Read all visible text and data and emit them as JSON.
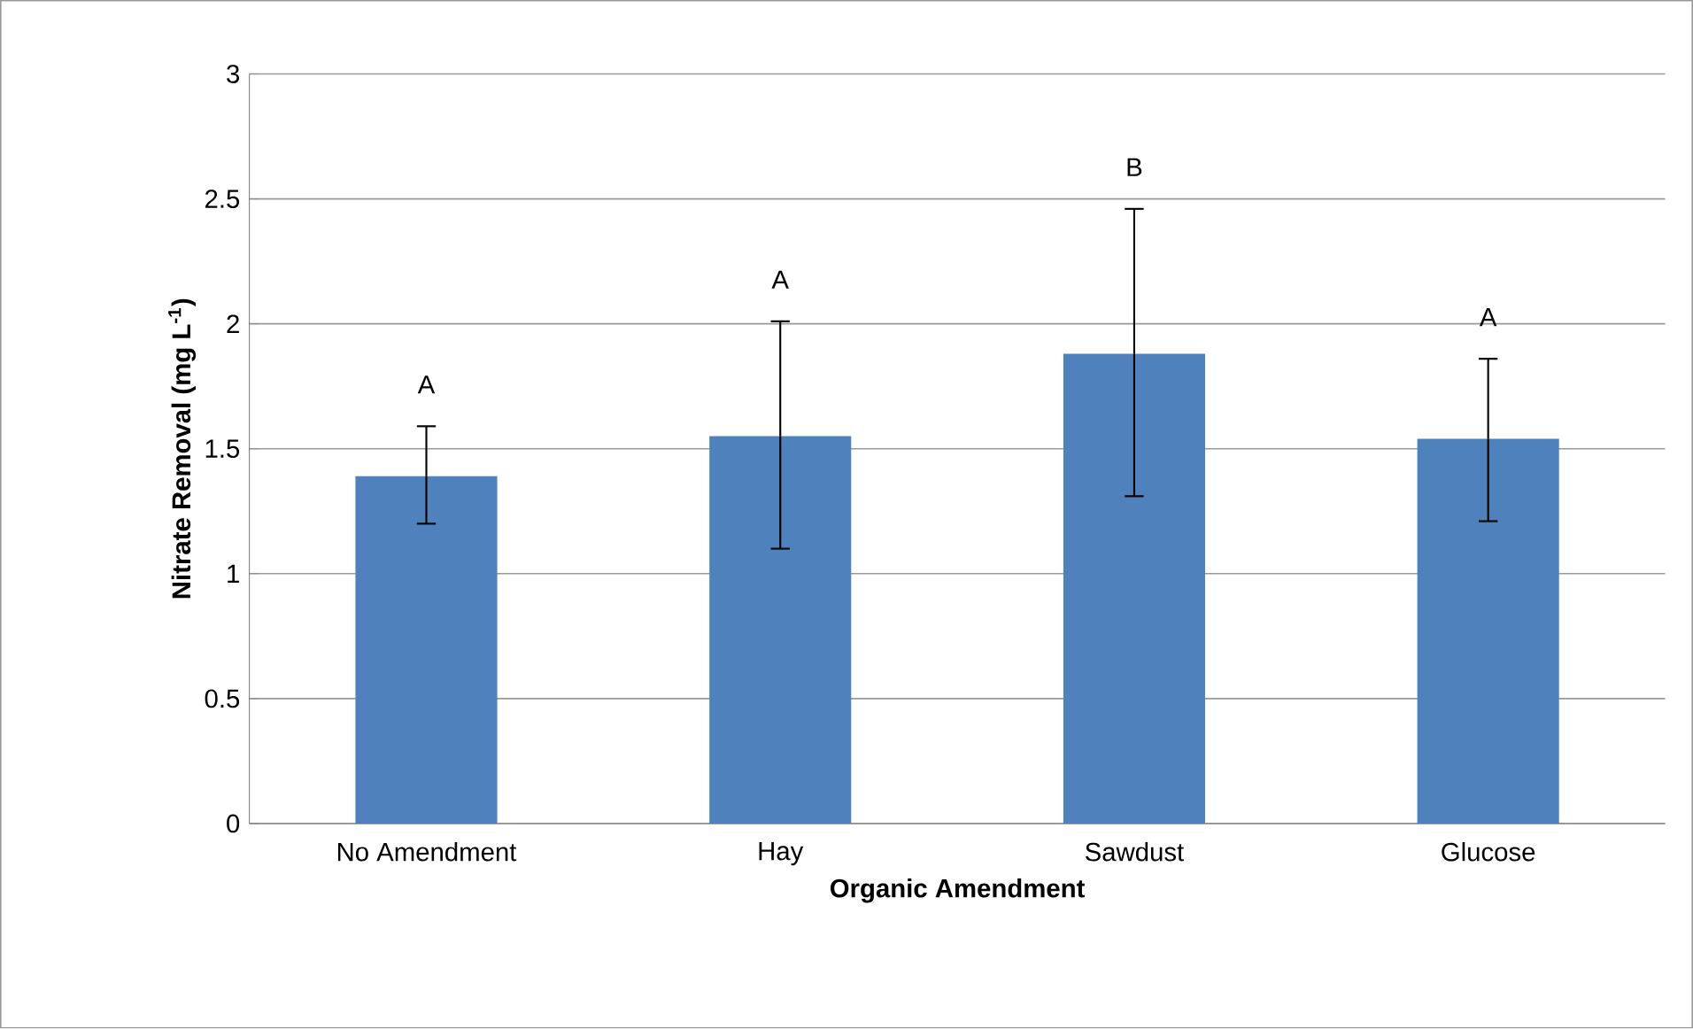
{
  "chart_data": {
    "type": "bar",
    "xlabel": "Organic Amendment",
    "ylabel": "Nitrate Removal (mg L$^{-1}$)",
    "categories": [
      "No Amendment",
      "Hay",
      "Sawdust",
      "Glucose"
    ],
    "values": [
      1.39,
      1.55,
      1.88,
      1.54
    ],
    "errors": [
      [
        1.2,
        1.59
      ],
      [
        1.1,
        2.01
      ],
      [
        1.31,
        2.46
      ],
      [
        1.21,
        1.86
      ]
    ],
    "color": "#4f81bd",
    "ylim": [
      0,
      3
    ],
    "yticks": [
      0,
      0.5,
      1,
      1.5,
      2,
      2.5,
      3
    ],
    "grid": "y",
    "annotations": [
      "A",
      "A",
      "B",
      "A"
    ]
  }
}
